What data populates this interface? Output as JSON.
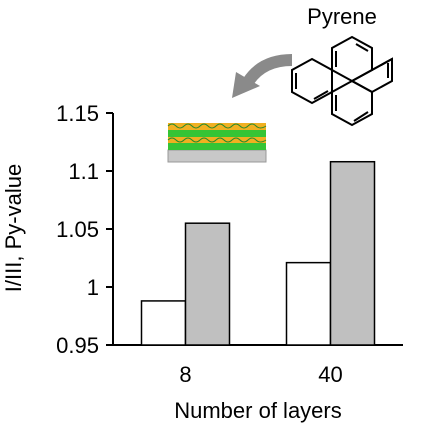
{
  "chart_data": {
    "type": "bar",
    "title": "",
    "xlabel": "Number of layers",
    "ylabel": "I/III, Py-value",
    "categories": [
      "8",
      "40"
    ],
    "series": [
      {
        "values": [
          0.988,
          1.021
        ],
        "color": "#ffffff"
      },
      {
        "values": [
          1.055,
          1.108
        ],
        "color": "#c0c0c0"
      }
    ],
    "ylim": [
      0.95,
      1.15
    ],
    "yticks": [
      "0.95",
      "1",
      "1.05",
      "1.1",
      "1.15"
    ],
    "grid": false,
    "legend": "none",
    "annotations": [
      {
        "text": "Pyrene"
      }
    ],
    "icons": [
      "pyrene-molecule-icon",
      "curved-arrow-icon",
      "layered-film-icon"
    ]
  }
}
